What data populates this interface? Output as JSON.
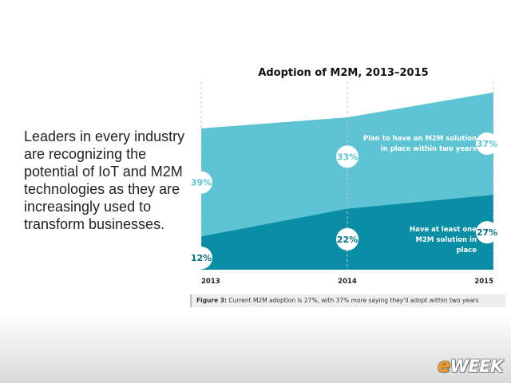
{
  "side_text": "Leaders in every industry are recognizing the potential of IoT and M2M technologies as they are increasingly used to transform businesses.",
  "caption": {
    "figure_label": "Figure 3:",
    "text": " Current M2M adoption is 27%, with 37% more saying they'll adopt within two years"
  },
  "logo": {
    "e": "e",
    "rest": "WEEK"
  },
  "chart_data": {
    "type": "area",
    "title": "Adoption of M2M, 2013–2015",
    "x": [
      "2013",
      "2014",
      "2015"
    ],
    "ylim": [
      0,
      70
    ],
    "grid": false,
    "series": [
      {
        "name": "Have at least one M2M solution in place",
        "values": [
          12,
          22,
          27
        ],
        "value_labels": [
          "12%",
          "22%",
          "27%"
        ],
        "color": "#0a8ea5"
      },
      {
        "name": "Plan to have an M2M solution in place within two years",
        "values": [
          39,
          33,
          37
        ],
        "value_labels": [
          "39%",
          "33%",
          "37%"
        ],
        "color": "#5ec3d3"
      }
    ]
  }
}
